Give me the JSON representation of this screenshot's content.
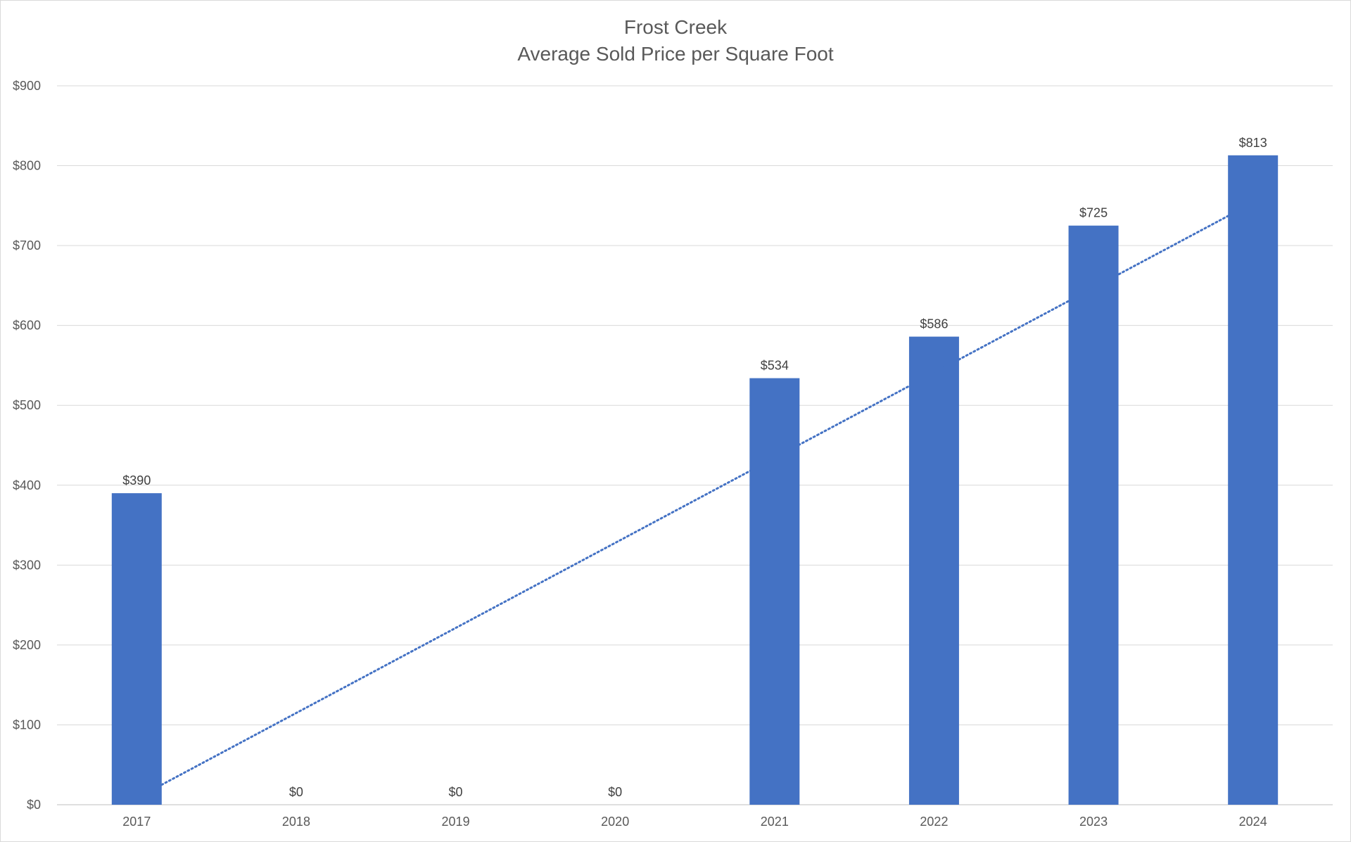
{
  "chart_data": {
    "type": "bar",
    "title": "Frost Creek",
    "subtitle": "Average Sold Price per Square Foot",
    "categories": [
      "2017",
      "2018",
      "2019",
      "2020",
      "2021",
      "2022",
      "2023",
      "2024"
    ],
    "values": [
      390,
      0,
      0,
      0,
      534,
      586,
      725,
      813
    ],
    "data_labels": [
      "$390",
      "$0",
      "$0",
      "$0",
      "$534",
      "$586",
      "$725",
      "$813"
    ],
    "ylim": [
      0,
      900
    ],
    "yticks": [
      0,
      100,
      200,
      300,
      400,
      500,
      600,
      700,
      800,
      900
    ],
    "ytick_labels": [
      "$0",
      "$100",
      "$200",
      "$300",
      "$400",
      "$500",
      "$600",
      "$700",
      "$800",
      "$900"
    ],
    "grid": true,
    "legend": "none",
    "bar_color": "#4472c4",
    "trendline": {
      "type": "linear",
      "style": "dotted",
      "color": "#4472c4",
      "start": {
        "x": "2017",
        "y": 25
      },
      "end": {
        "x": "2024",
        "y": 737
      }
    }
  }
}
